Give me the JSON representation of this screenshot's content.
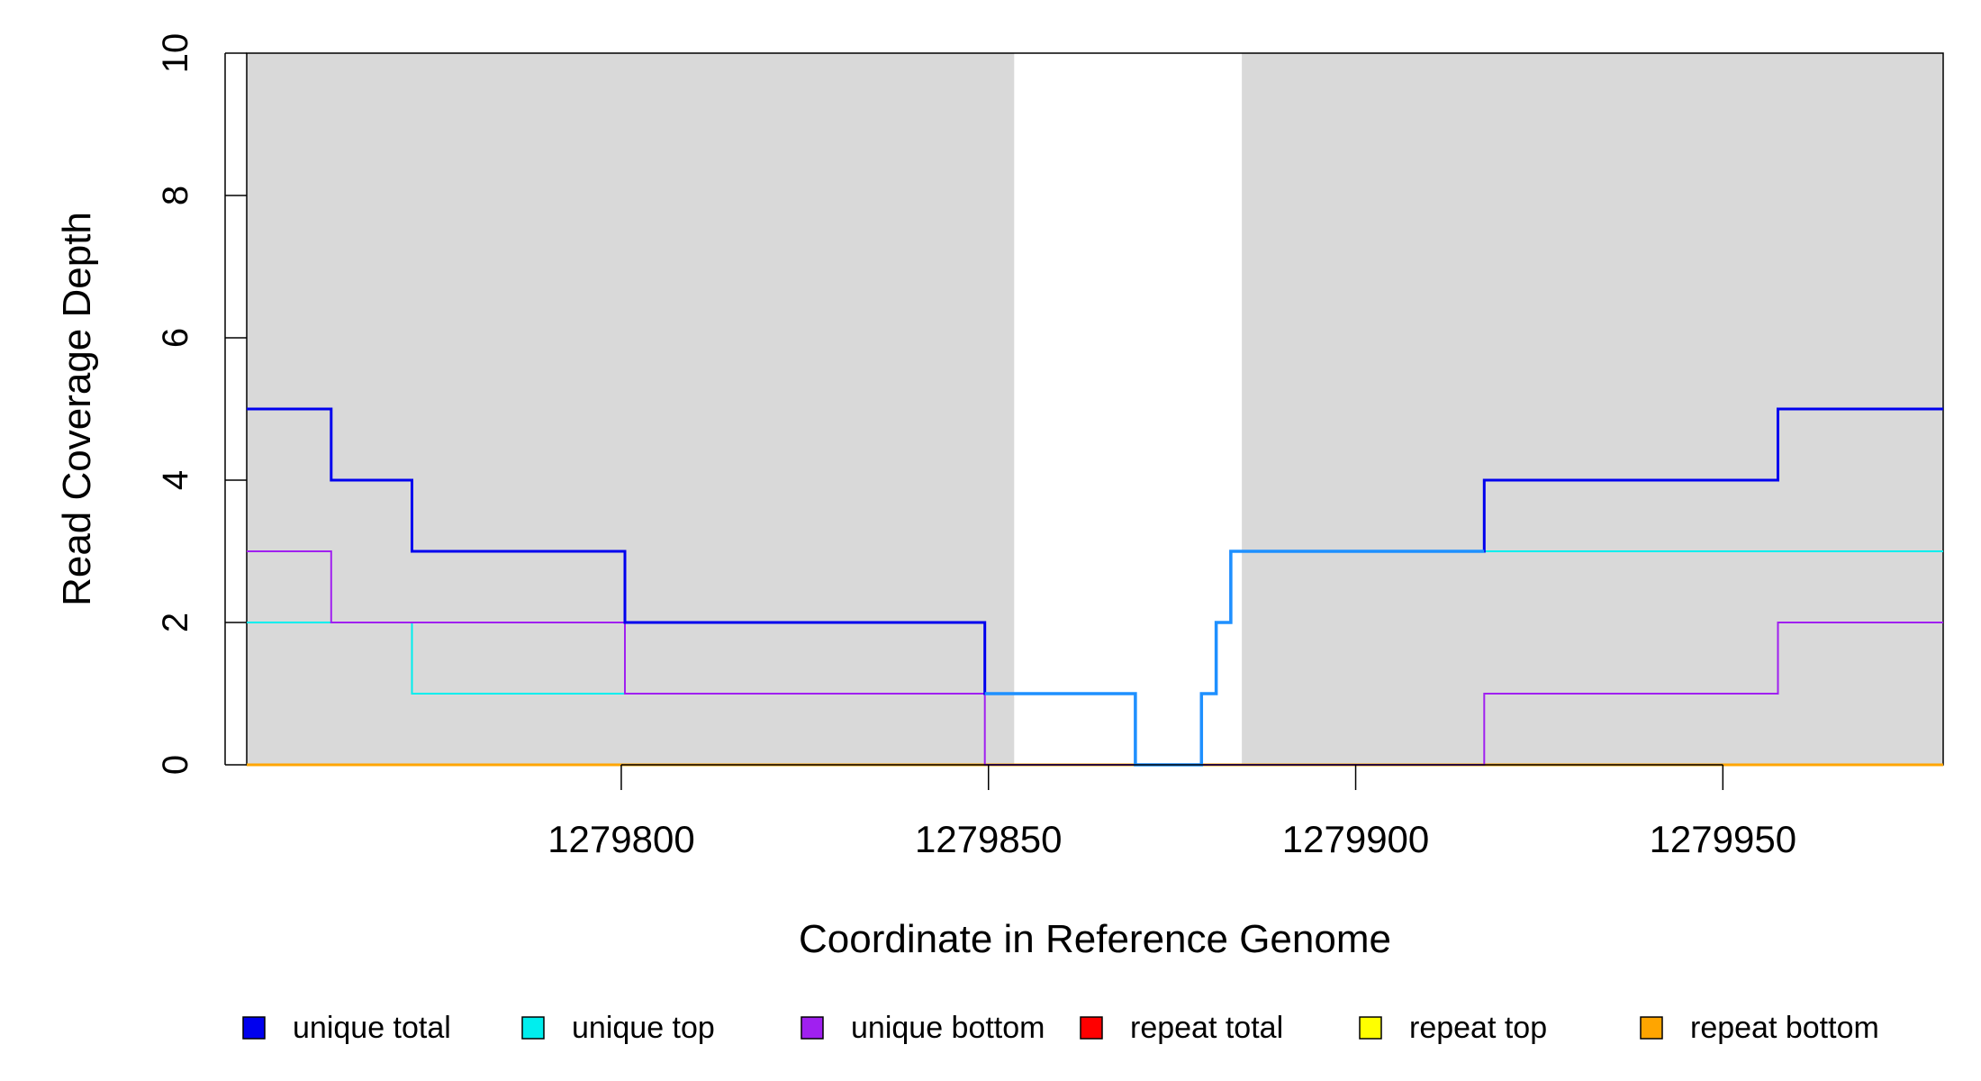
{
  "chart_data": {
    "type": "line",
    "xlabel": "Coordinate in Reference Genome",
    "ylabel": "Read Coverage Depth",
    "xlim": [
      1279749,
      1279980
    ],
    "ylim": [
      0,
      10
    ],
    "x_ticks": [
      1279800,
      1279850,
      1279900,
      1279950
    ],
    "y_ticks": [
      0,
      2,
      4,
      6,
      8,
      10
    ],
    "x_tick_labels": [
      "1279800",
      "1279850",
      "1279900",
      "1279950"
    ],
    "y_tick_labels": [
      "0",
      "2",
      "4",
      "6",
      "8",
      "10"
    ],
    "shaded_regions": [
      [
        1279749,
        1279853.5
      ],
      [
        1279884.5,
        1279980
      ]
    ],
    "shade_color": "#d9d9d9",
    "legend_position": "bottom",
    "series": [
      {
        "name": "unique total",
        "color": "#0000ee",
        "x": [
          1279749,
          1279760.5,
          1279760.5,
          1279771.5,
          1279771.5,
          1279800.5,
          1279800.5,
          1279849.5,
          1279849.5,
          1279870,
          1279870,
          1279879,
          1279879,
          1279881,
          1279881,
          1279883,
          1279883,
          1279887,
          1279887,
          1279917.5,
          1279917.5,
          1279957.5,
          1279957.5,
          1279980
        ],
        "values": [
          5,
          5,
          4,
          4,
          3,
          3,
          2,
          2,
          1,
          1,
          0,
          0,
          1,
          1,
          2,
          2,
          3,
          3,
          3,
          3,
          4,
          4,
          5,
          5
        ]
      },
      {
        "name": "unique top",
        "color": "#00eeee",
        "x": [
          1279749,
          1279771.5,
          1279771.5,
          1279849.5,
          1279849.5,
          1279870,
          1279870,
          1279879,
          1279879,
          1279881,
          1279881,
          1279883,
          1279883,
          1279887,
          1279887,
          1279980
        ],
        "values": [
          2,
          2,
          1,
          1,
          1,
          1,
          0,
          0,
          1,
          1,
          2,
          2,
          3,
          3,
          3,
          3
        ]
      },
      {
        "name": "unique bottom",
        "color": "#a020f0",
        "x": [
          1279749,
          1279760.5,
          1279760.5,
          1279800.5,
          1279800.5,
          1279849.5,
          1279849.5,
          1279917.5,
          1279917.5,
          1279957.5,
          1279957.5,
          1279980
        ],
        "values": [
          3,
          3,
          2,
          2,
          1,
          1,
          0,
          0,
          1,
          1,
          2,
          2
        ]
      },
      {
        "name": "repeat total",
        "color": "#ff0000",
        "x": [
          1279749,
          1279980
        ],
        "values": [
          0,
          0
        ]
      },
      {
        "name": "repeat top",
        "color": "#ffff00",
        "x": [
          1279749,
          1279980
        ],
        "values": [
          0,
          0
        ]
      },
      {
        "name": "repeat bottom",
        "color": "#ffa500",
        "x": [
          1279749,
          1279980
        ],
        "values": [
          0,
          0
        ]
      }
    ],
    "highlight_series": {
      "color": "#1e90ff",
      "x": [
        1279849.5,
        1279870,
        1279870,
        1279879,
        1279879,
        1279881,
        1279881,
        1279883,
        1279883,
        1279887,
        1279887,
        1279917.5
      ],
      "values": [
        1,
        1,
        0,
        0,
        1,
        1,
        2,
        2,
        3,
        3,
        3,
        3
      ]
    }
  }
}
